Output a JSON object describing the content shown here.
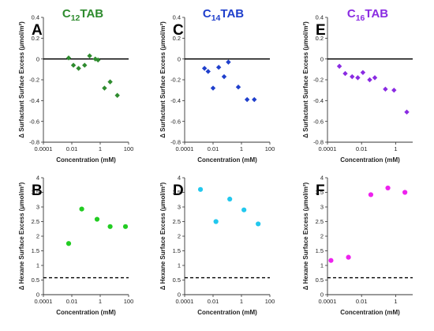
{
  "figure": {
    "columns": [
      {
        "title_pre": "C",
        "title_sub": "12",
        "title_post": "TAB",
        "title_color": "#2e8b2e"
      },
      {
        "title_pre": "C",
        "title_sub": "14",
        "title_post": "TAB",
        "title_color": "#1f3fcc"
      },
      {
        "title_pre": "C",
        "title_sub": "16",
        "title_post": "TAB",
        "title_color": "#8a2be2"
      }
    ]
  },
  "chart_data": [
    {
      "type": "scatter",
      "panel": "A",
      "xscale": "log",
      "xlabel": "Concentration (mM)",
      "ylabel": "Δ Surfactant Surface Excess (μmol/m²)",
      "xlim": [
        0.0001,
        100
      ],
      "ylim": [
        -0.8,
        0.4
      ],
      "xticks": [
        "0.0001",
        "0.01",
        "1",
        "100"
      ],
      "yticks": [
        "-0.8",
        "-0.6",
        "-0.4",
        "-0.2",
        "0",
        "0.2",
        "0.4"
      ],
      "reference_line": {
        "y": 0,
        "style": "solid"
      },
      "marker": "diamond",
      "color": "#2e8b2e",
      "x": [
        0.006,
        0.013,
        0.03,
        0.08,
        0.18,
        0.45,
        0.7,
        2.0,
        5.0,
        16.0
      ],
      "y": [
        0.01,
        -0.06,
        -0.09,
        -0.06,
        0.03,
        0.0,
        -0.01,
        -0.28,
        -0.22,
        -0.35
      ]
    },
    {
      "type": "scatter",
      "panel": "C",
      "xscale": "log",
      "xlabel": "Concentration (mM)",
      "ylabel": "Δ Surfactant Surface Excess (μmol/m²)",
      "xlim": [
        0.0001,
        100
      ],
      "ylim": [
        -0.8,
        0.4
      ],
      "xticks": [
        "0.0001",
        "0.01",
        "1",
        "100"
      ],
      "yticks": [
        "-0.8",
        "-0.6",
        "-0.4",
        "-0.2",
        "0",
        "0.2",
        "0.4"
      ],
      "reference_line": {
        "y": 0,
        "style": "solid"
      },
      "marker": "diamond",
      "color": "#1f3fcc",
      "x": [
        0.0025,
        0.0045,
        0.01,
        0.025,
        0.06,
        0.12,
        0.6,
        2.5,
        8.0
      ],
      "y": [
        -0.09,
        -0.12,
        -0.28,
        -0.08,
        -0.17,
        -0.03,
        -0.27,
        -0.39,
        -0.39
      ]
    },
    {
      "type": "scatter",
      "panel": "E",
      "xscale": "log",
      "xlabel": "Concentration (mM)",
      "ylabel": "Δ Surfactant Surface Excess (μmol/m²)",
      "xlim": [
        0.0001,
        10
      ],
      "ylim": [
        -0.8,
        0.4
      ],
      "xticks": [
        "0.0001",
        "0.01",
        "1"
      ],
      "yticks": [
        "-0.8",
        "-0.6",
        "-0.4",
        "-0.2",
        "0",
        "0.2",
        "0.4"
      ],
      "reference_line": {
        "y": 0,
        "style": "solid"
      },
      "marker": "diamond",
      "color": "#8a2be2",
      "x": [
        0.0005,
        0.0011,
        0.0028,
        0.006,
        0.012,
        0.03,
        0.06,
        0.25,
        0.8,
        4.5
      ],
      "y": [
        -0.07,
        -0.14,
        -0.17,
        -0.18,
        -0.13,
        -0.2,
        -0.18,
        -0.29,
        -0.3,
        -0.51
      ]
    },
    {
      "type": "scatter",
      "panel": "B",
      "xscale": "log",
      "xlabel": "Concentration (mM)",
      "ylabel": "Δ Hexane Surface Excess (μmol/m²)",
      "xlim": [
        0.0001,
        100
      ],
      "ylim": [
        0,
        4
      ],
      "xticks": [
        "0.0001",
        "0.01",
        "1",
        "100"
      ],
      "yticks": [
        "0",
        "0.5",
        "1",
        "1.5",
        "2",
        "2.5",
        "3",
        "3.5",
        "4"
      ],
      "reference_line": {
        "y": 0.58,
        "style": "dashed"
      },
      "marker": "circle",
      "color": "#22cc22",
      "x": [
        0.006,
        0.05,
        0.6,
        5.0,
        60.0
      ],
      "y": [
        1.75,
        2.93,
        2.58,
        2.33,
        2.33
      ]
    },
    {
      "type": "scatter",
      "panel": "D",
      "xscale": "log",
      "xlabel": "Concentration (mM)",
      "ylabel": "Δ Hexane Surface Excess (μmol/m²)",
      "xlim": [
        0.0001,
        100
      ],
      "ylim": [
        0,
        4
      ],
      "xticks": [
        "0.0001",
        "0.01",
        "1",
        "100"
      ],
      "yticks": [
        "0",
        "0.5",
        "1",
        "1.5",
        "2",
        "2.5",
        "3",
        "3.5",
        "4"
      ],
      "reference_line": {
        "y": 0.58,
        "style": "dashed"
      },
      "marker": "circle",
      "color": "#22c8ee",
      "x": [
        0.0013,
        0.016,
        0.15,
        1.5,
        15.0
      ],
      "y": [
        3.6,
        2.5,
        3.27,
        2.9,
        2.42
      ]
    },
    {
      "type": "scatter",
      "panel": "F",
      "xscale": "log",
      "xlabel": "Concentration (mM)",
      "ylabel": "Δ Hexane Surface Excess (μmol/m²)",
      "xlim": [
        0.0001,
        10
      ],
      "ylim": [
        0,
        4
      ],
      "xticks": [
        "0.0001",
        "0.01",
        "1"
      ],
      "yticks": [
        "0",
        "0.5",
        "1",
        "1.5",
        "2",
        "2.5",
        "3",
        "3.5",
        "4"
      ],
      "reference_line": {
        "y": 0.58,
        "style": "dashed"
      },
      "marker": "circle",
      "color": "#ee22ee",
      "x": [
        0.00016,
        0.0017,
        0.035,
        0.35,
        3.5
      ],
      "y": [
        1.17,
        1.28,
        3.42,
        3.65,
        3.5
      ]
    }
  ]
}
